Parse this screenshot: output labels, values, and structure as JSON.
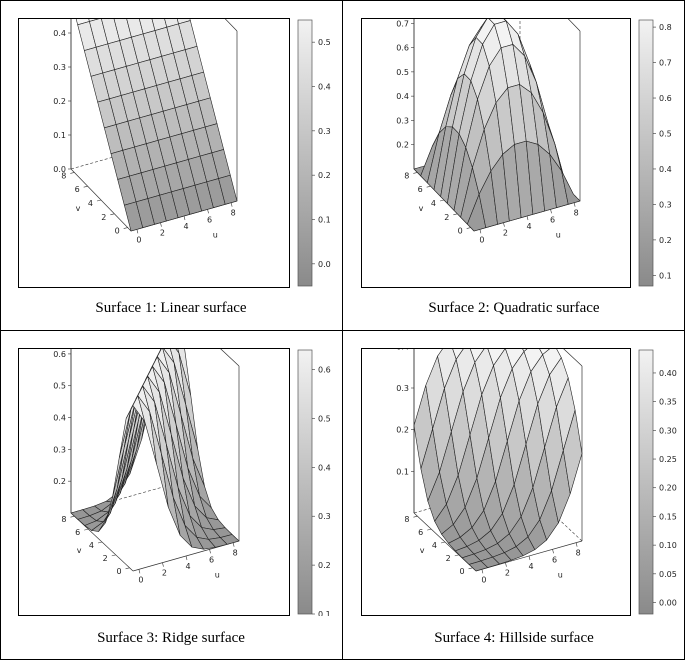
{
  "chart_data": [
    {
      "type": "surface",
      "caption": "Surface 1: Linear surface",
      "xlabel": "u",
      "ylabel": "v",
      "u_ticks": [
        "0",
        "2",
        "4",
        "6",
        "8"
      ],
      "v_ticks": [
        "0",
        "2",
        "4",
        "6",
        "8"
      ],
      "z_ticks": [
        "0.0",
        "0.1",
        "0.2",
        "0.3",
        "0.4",
        "0.5"
      ],
      "zlim": [
        0.0,
        0.5
      ],
      "colorbar_ticks": [
        "0.0",
        "0.1",
        "0.2",
        "0.3",
        "0.4",
        "0.5"
      ],
      "colorbar_range": [
        -0.05,
        0.55
      ],
      "z_formula": "0.5 * v / 9"
    },
    {
      "type": "surface",
      "caption": "Surface 2: Quadratic surface",
      "xlabel": "u",
      "ylabel": "v",
      "u_ticks": [
        "0",
        "2",
        "4",
        "6",
        "8"
      ],
      "v_ticks": [
        "0",
        "2",
        "4",
        "6",
        "8"
      ],
      "z_ticks": [
        "0.2",
        "0.3",
        "0.4",
        "0.5",
        "0.6",
        "0.7"
      ],
      "zlim": [
        0.1,
        0.8
      ],
      "colorbar_ticks": [
        "0.1",
        "0.2",
        "0.3",
        "0.4",
        "0.5",
        "0.6",
        "0.7",
        "0.8"
      ],
      "colorbar_range": [
        0.07,
        0.82
      ],
      "z_formula": "0.1 + 0.7 * (1 - ((u - 4.5) / 4.5)^2) * (1 - ((v - 4.5) / 4.5)^2)"
    },
    {
      "type": "surface",
      "caption": "Surface 3: Ridge surface",
      "xlabel": "u",
      "ylabel": "v",
      "u_ticks": [
        "0",
        "2",
        "4",
        "6",
        "8"
      ],
      "v_ticks": [
        "0",
        "2",
        "4",
        "6",
        "8"
      ],
      "z_ticks": [
        "0.2",
        "0.3",
        "0.4",
        "0.5",
        "0.6"
      ],
      "zlim": [
        0.1,
        0.65
      ],
      "colorbar_ticks": [
        "0.1",
        "0.2",
        "0.3",
        "0.4",
        "0.5",
        "0.6"
      ],
      "colorbar_range": [
        0.1,
        0.64
      ],
      "z_formula": "0.1 + 0.52 * exp(-((u - v)^2) / 8)"
    },
    {
      "type": "surface",
      "caption": "Surface 4: Hillside surface",
      "xlabel": "u",
      "ylabel": "v",
      "u_ticks": [
        "0",
        "2",
        "4",
        "6",
        "8"
      ],
      "v_ticks": [
        "0",
        "2",
        "4",
        "6",
        "8"
      ],
      "z_ticks": [
        "0.1",
        "0.2",
        "0.3",
        "0.4"
      ],
      "zlim": [
        0.0,
        0.42
      ],
      "colorbar_ticks": [
        "0.00",
        "0.05",
        "0.10",
        "0.15",
        "0.20",
        "0.25",
        "0.30",
        "0.35",
        "0.40"
      ],
      "colorbar_range": [
        -0.02,
        0.44
      ],
      "z_formula": "0.42 / (1 + exp(-(u + v - 9) * 0.9))"
    }
  ]
}
